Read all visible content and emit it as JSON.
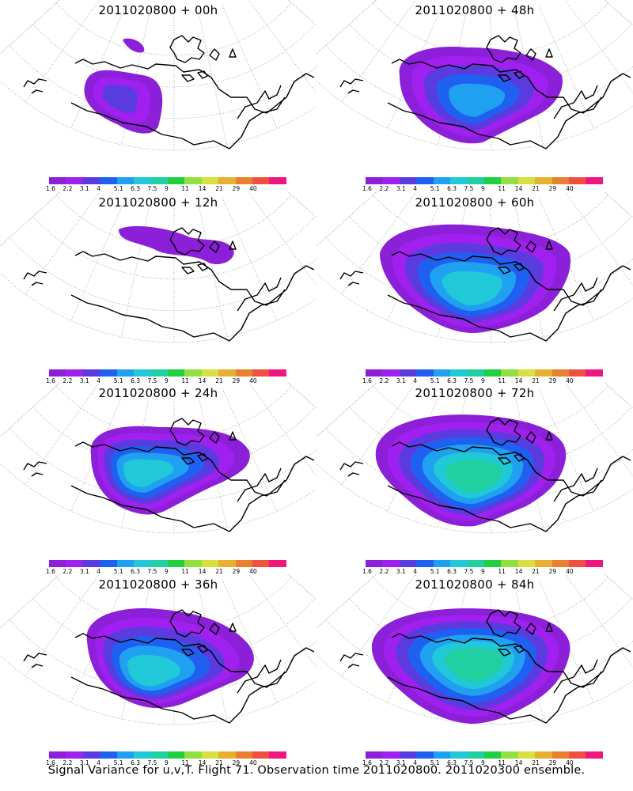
{
  "panels": [
    {
      "title": "2011020800 + 00h",
      "stage": 0
    },
    {
      "title": "2011020800 + 48h",
      "stage": 4
    },
    {
      "title": "2011020800 + 12h",
      "stage": 1
    },
    {
      "title": "2011020800 + 60h",
      "stage": 5
    },
    {
      "title": "2011020800 + 24h",
      "stage": 2
    },
    {
      "title": "2011020800 + 72h",
      "stage": 6
    },
    {
      "title": "2011020800 + 36h",
      "stage": 3
    },
    {
      "title": "2011020800 + 84h",
      "stage": 7
    }
  ],
  "colorbar": {
    "labels": [
      "1.6",
      "2.2",
      "3.1",
      "4",
      "5.1",
      "6.3",
      "7.5",
      "9",
      "11",
      "14",
      "21",
      "29",
      "40"
    ],
    "colors": [
      "#8c1fd8",
      "#a020f0",
      "#5a3be0",
      "#2060f0",
      "#1fa0f0",
      "#20c8d8",
      "#20d0a0",
      "#20d040",
      "#90e040",
      "#d8e040",
      "#e8b030",
      "#e88030",
      "#f05040",
      "#f01880"
    ]
  },
  "footer": "Signal Variance for u,v,T. Flight 71. Observation time 2011020800. 2011020300 ensemble."
}
